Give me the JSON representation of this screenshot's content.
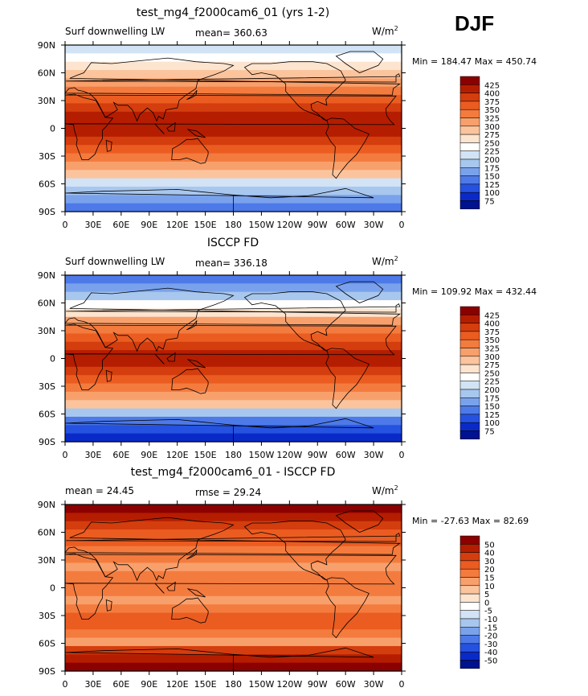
{
  "season": "DJF",
  "units": "W/m",
  "units_superscript": "2",
  "x_tick_labels": [
    "0",
    "30E",
    "60E",
    "90E",
    "120E",
    "150E",
    "180",
    "150W",
    "120W",
    "90W",
    "60W",
    "30W",
    "0"
  ],
  "y_tick_labels": [
    "90N",
    "60N",
    "30N",
    "0",
    "30S",
    "60S",
    "90S"
  ],
  "chart_data": [
    {
      "type": "heatmap",
      "title": "test_mg4_f2000cam6_01 (yrs 1-2)",
      "left_label": "Surf downwelling LW",
      "center_label": "mean= 360.63",
      "min_label": "Min",
      "min_value": "184.47",
      "max_label": "Max",
      "max_value": "450.74",
      "colorbar_levels": [
        "425",
        "400",
        "375",
        "350",
        "325",
        "300",
        "275",
        "250",
        "225",
        "200",
        "175",
        "150",
        "125",
        "100",
        "75"
      ],
      "colorbar_colors": [
        "#8b0000",
        "#b51d00",
        "#d43d0d",
        "#eb5c21",
        "#f47b3e",
        "#f8a06c",
        "#fbc49d",
        "#fde4cf",
        "#ffffff",
        "#d2e3f5",
        "#a8c7ee",
        "#7aa2ec",
        "#4d7ae8",
        "#2552e0",
        "#0a2ac8",
        "#00128f"
      ]
    },
    {
      "type": "heatmap",
      "title": "ISCCP FD",
      "left_label": "Surf downwelling LW",
      "center_label": "mean= 336.18",
      "min_label": "Min",
      "min_value": "109.92",
      "max_label": "Max",
      "max_value": "432.44",
      "colorbar_levels": [
        "425",
        "400",
        "375",
        "350",
        "325",
        "300",
        "275",
        "250",
        "225",
        "200",
        "175",
        "150",
        "125",
        "100",
        "75"
      ],
      "colorbar_colors": [
        "#8b0000",
        "#b51d00",
        "#d43d0d",
        "#eb5c21",
        "#f47b3e",
        "#f8a06c",
        "#fbc49d",
        "#fde4cf",
        "#ffffff",
        "#d2e3f5",
        "#a8c7ee",
        "#7aa2ec",
        "#4d7ae8",
        "#2552e0",
        "#0a2ac8",
        "#00128f"
      ]
    },
    {
      "type": "heatmap",
      "title": "test_mg4_f2000cam6_01 - ISCCP FD",
      "left_label": "mean =  24.45",
      "center_label": "rmse =  29.24",
      "min_label": "Min",
      "min_value": "-27.63",
      "max_label": "Max",
      "max_value": "82.69",
      "colorbar_levels": [
        "50",
        "40",
        "30",
        "20",
        "15",
        "10",
        "5",
        "0",
        "-5",
        "-10",
        "-15",
        "-20",
        "-30",
        "-40",
        "-50"
      ],
      "colorbar_colors": [
        "#8b0000",
        "#b51d00",
        "#d43d0d",
        "#eb5c21",
        "#f47b3e",
        "#f8a06c",
        "#fbc49d",
        "#fde4cf",
        "#ffffff",
        "#d2e3f5",
        "#a8c7ee",
        "#7aa2ec",
        "#4d7ae8",
        "#2552e0",
        "#0a2ac8",
        "#00128f"
      ]
    }
  ]
}
